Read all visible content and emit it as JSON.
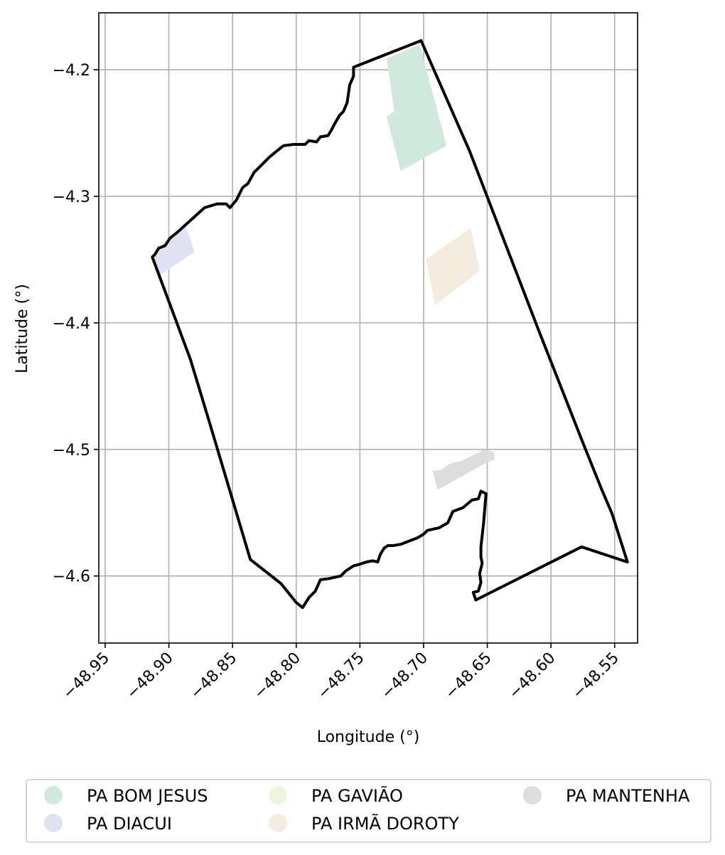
{
  "chart_data": {
    "type": "map",
    "xlabel": "Longitude (°)",
    "ylabel": "Latitude (°)",
    "xlim": [
      -48.955,
      -48.532
    ],
    "ylim": [
      -4.653,
      -4.155
    ],
    "grid": true,
    "x_ticks": [
      {
        "value": -48.95,
        "label": "−48.95"
      },
      {
        "value": -48.9,
        "label": "−48.90"
      },
      {
        "value": -48.85,
        "label": "−48.85"
      },
      {
        "value": -48.8,
        "label": "−48.80"
      },
      {
        "value": -48.75,
        "label": "−48.75"
      },
      {
        "value": -48.7,
        "label": "−48.70"
      },
      {
        "value": -48.65,
        "label": "−48.65"
      },
      {
        "value": -48.6,
        "label": "−48.60"
      },
      {
        "value": -48.55,
        "label": "−48.55"
      }
    ],
    "y_ticks": [
      {
        "value": -4.2,
        "label": "−4.2"
      },
      {
        "value": -4.3,
        "label": "−4.3"
      },
      {
        "value": -4.4,
        "label": "−4.4"
      },
      {
        "value": -4.5,
        "label": "−4.5"
      },
      {
        "value": -4.6,
        "label": "−4.6"
      }
    ],
    "boundary": {
      "color": "#000000",
      "coordinates": [
        [
          -48.702,
          -4.177
        ],
        [
          -48.664,
          -4.264
        ],
        [
          -48.636,
          -4.337
        ],
        [
          -48.61,
          -4.405
        ],
        [
          -48.574,
          -4.497
        ],
        [
          -48.56,
          -4.532
        ],
        [
          -48.552,
          -4.551
        ],
        [
          -48.54,
          -4.589
        ],
        [
          -48.576,
          -4.577
        ],
        [
          -48.659,
          -4.619
        ],
        [
          -48.661,
          -4.613
        ],
        [
          -48.657,
          -4.612
        ],
        [
          -48.655,
          -4.605
        ],
        [
          -48.656,
          -4.598
        ],
        [
          -48.654,
          -4.59
        ],
        [
          -48.655,
          -4.585
        ],
        [
          -48.655,
          -4.577
        ],
        [
          -48.654,
          -4.568
        ],
        [
          -48.653,
          -4.559
        ],
        [
          -48.652,
          -4.547
        ],
        [
          -48.651,
          -4.535
        ],
        [
          -48.655,
          -4.533
        ],
        [
          -48.657,
          -4.539
        ],
        [
          -48.662,
          -4.54
        ],
        [
          -48.669,
          -4.546
        ],
        [
          -48.677,
          -4.549
        ],
        [
          -48.681,
          -4.558
        ],
        [
          -48.688,
          -4.562
        ],
        [
          -48.697,
          -4.564
        ],
        [
          -48.7,
          -4.567
        ],
        [
          -48.705,
          -4.57
        ],
        [
          -48.713,
          -4.573
        ],
        [
          -48.718,
          -4.575
        ],
        [
          -48.724,
          -4.576
        ],
        [
          -48.728,
          -4.576
        ],
        [
          -48.731,
          -4.578
        ],
        [
          -48.734,
          -4.583
        ],
        [
          -48.736,
          -4.589
        ],
        [
          -48.74,
          -4.588
        ],
        [
          -48.745,
          -4.589
        ],
        [
          -48.751,
          -4.591
        ],
        [
          -48.755,
          -4.592
        ],
        [
          -48.761,
          -4.596
        ],
        [
          -48.765,
          -4.6
        ],
        [
          -48.774,
          -4.602
        ],
        [
          -48.781,
          -4.603
        ],
        [
          -48.785,
          -4.612
        ],
        [
          -48.79,
          -4.617
        ],
        [
          -48.795,
          -4.625
        ],
        [
          -48.8,
          -4.621
        ],
        [
          -48.812,
          -4.606
        ],
        [
          -48.836,
          -4.587
        ],
        [
          -48.868,
          -4.479
        ],
        [
          -48.883,
          -4.429
        ],
        [
          -48.913,
          -4.348
        ],
        [
          -48.911,
          -4.346
        ],
        [
          -48.908,
          -4.341
        ],
        [
          -48.903,
          -4.339
        ],
        [
          -48.899,
          -4.333
        ],
        [
          -48.894,
          -4.329
        ],
        [
          -48.872,
          -4.309
        ],
        [
          -48.862,
          -4.306
        ],
        [
          -48.855,
          -4.306
        ],
        [
          -48.852,
          -4.309
        ],
        [
          -48.847,
          -4.303
        ],
        [
          -48.842,
          -4.293
        ],
        [
          -48.838,
          -4.29
        ],
        [
          -48.833,
          -4.281
        ],
        [
          -48.828,
          -4.276
        ],
        [
          -48.821,
          -4.269
        ],
        [
          -48.815,
          -4.264
        ],
        [
          -48.81,
          -4.26
        ],
        [
          -48.802,
          -4.259
        ],
        [
          -48.793,
          -4.259
        ],
        [
          -48.79,
          -4.256
        ],
        [
          -48.784,
          -4.257
        ],
        [
          -48.781,
          -4.253
        ],
        [
          -48.775,
          -4.252
        ],
        [
          -48.772,
          -4.247
        ],
        [
          -48.77,
          -4.243
        ],
        [
          -48.766,
          -4.236
        ],
        [
          -48.763,
          -4.233
        ],
        [
          -48.76,
          -4.226
        ],
        [
          -48.758,
          -4.212
        ],
        [
          -48.755,
          -4.205
        ],
        [
          -48.755,
          -4.198
        ],
        [
          -48.702,
          -4.177
        ]
      ]
    },
    "series": [
      {
        "name": "PA BOM JESUS",
        "color": "#cfeadc",
        "polygon": [
          [
            -48.729,
            -4.191
          ],
          [
            -48.703,
            -4.18
          ],
          [
            -48.682,
            -4.26
          ],
          [
            -48.718,
            -4.28
          ],
          [
            -48.729,
            -4.237
          ],
          [
            -48.723,
            -4.233
          ]
        ]
      },
      {
        "name": "PA DIACUI",
        "color": "#dfe2f1",
        "polygon": [
          [
            -48.912,
            -4.345
          ],
          [
            -48.887,
            -4.322
          ],
          [
            -48.88,
            -4.344
          ],
          [
            -48.908,
            -4.363
          ]
        ]
      },
      {
        "name": "PA GAVIÃO",
        "color": "#eaf7dc",
        "polygon": []
      },
      {
        "name": "PA IRMÃ DOROTY",
        "color": "#f5ebde",
        "polygon": [
          [
            -48.698,
            -4.35
          ],
          [
            -48.663,
            -4.325
          ],
          [
            -48.656,
            -4.359
          ],
          [
            -48.691,
            -4.386
          ]
        ]
      },
      {
        "name": "PA MANTENHA",
        "color": "#dddddd",
        "polygon": [
          [
            -48.693,
            -4.517
          ],
          [
            -48.686,
            -4.516
          ],
          [
            -48.679,
            -4.511
          ],
          [
            -48.67,
            -4.509
          ],
          [
            -48.66,
            -4.504
          ],
          [
            -48.652,
            -4.5
          ],
          [
            -48.645,
            -4.502
          ],
          [
            -48.644,
            -4.508
          ],
          [
            -48.65,
            -4.51
          ],
          [
            -48.689,
            -4.532
          ]
        ]
      }
    ],
    "legend": {
      "position": "bottom",
      "columns": 3
    }
  }
}
